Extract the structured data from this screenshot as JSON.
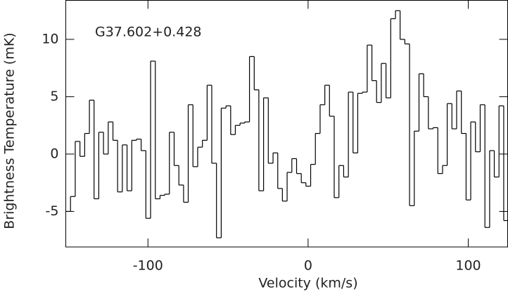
{
  "chart_data": {
    "type": "step",
    "xlabel": "Velocity (km/s)",
    "ylabel": "Brightness Temperature (mK)",
    "annotation": "G37.602+0.428",
    "color": "#000000",
    "xlim": [
      -151.3,
      124.6
    ],
    "ylim": [
      -8.1,
      13.4
    ],
    "xticks": [
      -100,
      0,
      100
    ],
    "yticks": [
      -5,
      0,
      5,
      10
    ],
    "x": [
      -149.8,
      -146.9,
      -143.9,
      -141.0,
      -138.0,
      -135.1,
      -132.2,
      -129.2,
      -126.3,
      -123.3,
      -120.4,
      -117.5,
      -114.5,
      -111.6,
      -108.6,
      -105.7,
      -102.8,
      -99.8,
      -96.9,
      -93.9,
      -91.0,
      -88.1,
      -85.1,
      -82.2,
      -79.2,
      -76.3,
      -73.4,
      -70.4,
      -67.5,
      -64.5,
      -61.6,
      -58.7,
      -55.7,
      -52.8,
      -49.8,
      -46.9,
      -44.0,
      -41.0,
      -38.1,
      -35.1,
      -32.2,
      -29.3,
      -26.3,
      -23.4,
      -20.4,
      -17.5,
      -14.6,
      -11.6,
      -8.7,
      -5.7,
      -2.8,
      0.1,
      3.1,
      6.0,
      9.0,
      11.9,
      14.8,
      17.8,
      20.7,
      23.7,
      26.6,
      29.5,
      32.5,
      35.4,
      38.4,
      41.3,
      44.2,
      47.2,
      50.1,
      53.1,
      56.0,
      58.9,
      61.9,
      64.8,
      67.8,
      70.7,
      73.6,
      76.6,
      79.5,
      82.5,
      85.4,
      88.3,
      91.3,
      94.2,
      97.2,
      100.1,
      103.0,
      106.0,
      108.9,
      111.9,
      114.8,
      117.7,
      120.7,
      123.6
    ],
    "values": [
      -5.0,
      -3.7,
      1.1,
      -0.2,
      1.8,
      4.7,
      -3.9,
      1.9,
      0.0,
      2.8,
      1.2,
      -3.3,
      0.8,
      -3.2,
      1.2,
      1.3,
      0.3,
      -5.6,
      8.1,
      -3.9,
      -3.6,
      -3.5,
      1.9,
      -1.0,
      -2.7,
      -4.2,
      4.3,
      -1.1,
      0.6,
      1.2,
      6.0,
      -0.8,
      -7.3,
      4.0,
      4.2,
      1.7,
      2.5,
      2.7,
      2.8,
      8.5,
      5.6,
      -3.2,
      4.9,
      -0.8,
      0.1,
      -3.0,
      -4.1,
      -1.6,
      -0.4,
      -1.7,
      -2.5,
      -2.8,
      -0.9,
      1.8,
      4.3,
      6.0,
      3.3,
      -3.8,
      -1.0,
      -2.0,
      5.4,
      0.1,
      5.3,
      5.4,
      9.5,
      6.4,
      4.5,
      7.9,
      4.9,
      11.8,
      12.5,
      10.0,
      9.6,
      -4.5,
      2.0,
      7.0,
      5.0,
      2.2,
      2.3,
      -1.7,
      -1.0,
      4.4,
      2.2,
      5.5,
      1.8,
      -4.0,
      2.8,
      0.2,
      4.3,
      -6.4,
      0.3,
      -2.0,
      4.2,
      -5.8
    ]
  }
}
